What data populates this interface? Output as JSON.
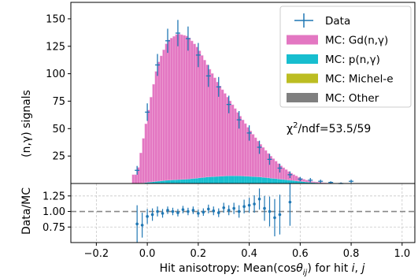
{
  "chart_data": [
    {
      "type": "bar",
      "panel": "main",
      "ylabel": "(n,γ) signals",
      "xlim": [
        -0.3,
        1.05
      ],
      "ylim": [
        0,
        165
      ],
      "yticks": [
        25,
        50,
        75,
        100,
        125,
        150
      ],
      "grid": false,
      "legend_position": "top-right",
      "legend": [
        "Data",
        "MC: Gd(n,γ)",
        "MC: p(n,γ)",
        "MC: Michel-e",
        "MC: Other"
      ],
      "colors": {
        "data": "#1f77b4",
        "gd": "#e377c2",
        "p": "#17becf",
        "michel": "#bcbd22",
        "other": "#7f7f7f"
      },
      "annotation": {
        "prefix": "χ",
        "sup": "2",
        "rest": "/ndf=53.5/59"
      },
      "x": [
        -0.04,
        0.0,
        0.04,
        0.08,
        0.12,
        0.16,
        0.2,
        0.24,
        0.28,
        0.32,
        0.36,
        0.4,
        0.44,
        0.48,
        0.52,
        0.56,
        0.6,
        0.64,
        0.68,
        0.72,
        0.76,
        0.8
      ],
      "series": [
        {
          "name": "MC: Other",
          "values": [
            0,
            0,
            0,
            0,
            0,
            0,
            0,
            0,
            0,
            0,
            0,
            0,
            0,
            0,
            0,
            0,
            0,
            0,
            0,
            0,
            0,
            0
          ]
        },
        {
          "name": "MC: Michel-e",
          "values": [
            0,
            0,
            0,
            0,
            0,
            0,
            0,
            0,
            0,
            0,
            0,
            0,
            0,
            0,
            0,
            0,
            0,
            0,
            0,
            0,
            0,
            0
          ]
        },
        {
          "name": "MC: p(n,γ)",
          "values": [
            0,
            1,
            2,
            3,
            3.5,
            4,
            5,
            6,
            6.5,
            7,
            7,
            6.5,
            6,
            5,
            4,
            3,
            2,
            1,
            0.5,
            0,
            0,
            0
          ]
        },
        {
          "name": "MC: Gd(n,γ)",
          "values": [
            8,
            60,
            106,
            127,
            133,
            130,
            118,
            100,
            84,
            70,
            56,
            43,
            31,
            21,
            13,
            7,
            3,
            1,
            0.5,
            0,
            0,
            0
          ]
        },
        {
          "name": "Data",
          "values": [
            12,
            65,
            108,
            130,
            137,
            132,
            117,
            98,
            88,
            72,
            58,
            46,
            33,
            22,
            14,
            8,
            4,
            3,
            2,
            1,
            0,
            2
          ],
          "errors": [
            4,
            8,
            10,
            11,
            12,
            11,
            11,
            10,
            9,
            8,
            8,
            7,
            6,
            5,
            4,
            3,
            2,
            2,
            1.5,
            1,
            1,
            1.5
          ]
        }
      ]
    },
    {
      "type": "scatter",
      "panel": "ratio",
      "xlabel": {
        "prefix": "Hit anisotropy: Mean(cos",
        "theta": "θ",
        "sub": "ij",
        "middle": ") for hit ",
        "i": "i",
        "comma": ", ",
        "j": "j"
      },
      "ylabel": "Data/MC",
      "xlim": [
        -0.3,
        1.05
      ],
      "ylim": [
        0.5,
        1.45
      ],
      "xticks": [
        -0.2,
        0.0,
        0.2,
        0.4,
        0.6,
        0.8,
        1.0
      ],
      "yticks": [
        0.75,
        1.0,
        1.25
      ],
      "reference_line": 1.0,
      "grid": true,
      "x": [
        -0.04,
        -0.02,
        0.0,
        0.02,
        0.04,
        0.06,
        0.08,
        0.1,
        0.12,
        0.14,
        0.16,
        0.18,
        0.2,
        0.22,
        0.24,
        0.26,
        0.28,
        0.3,
        0.32,
        0.34,
        0.36,
        0.38,
        0.4,
        0.42,
        0.44,
        0.46,
        0.48,
        0.5,
        0.52,
        0.56
      ],
      "values": [
        0.8,
        0.78,
        0.92,
        0.95,
        1.0,
        0.97,
        1.02,
        1.0,
        0.98,
        1.03,
        1.0,
        1.02,
        0.97,
        0.99,
        1.04,
        1.01,
        0.98,
        1.06,
        1.02,
        1.05,
        1.0,
        1.08,
        1.1,
        1.12,
        1.2,
        1.05,
        1.0,
        0.9,
        0.95,
        1.15
      ],
      "errors": [
        0.3,
        0.2,
        0.12,
        0.1,
        0.08,
        0.07,
        0.06,
        0.06,
        0.06,
        0.06,
        0.06,
        0.06,
        0.06,
        0.06,
        0.07,
        0.07,
        0.07,
        0.08,
        0.08,
        0.09,
        0.1,
        0.11,
        0.12,
        0.14,
        0.17,
        0.2,
        0.24,
        0.3,
        0.32,
        0.38
      ]
    }
  ]
}
